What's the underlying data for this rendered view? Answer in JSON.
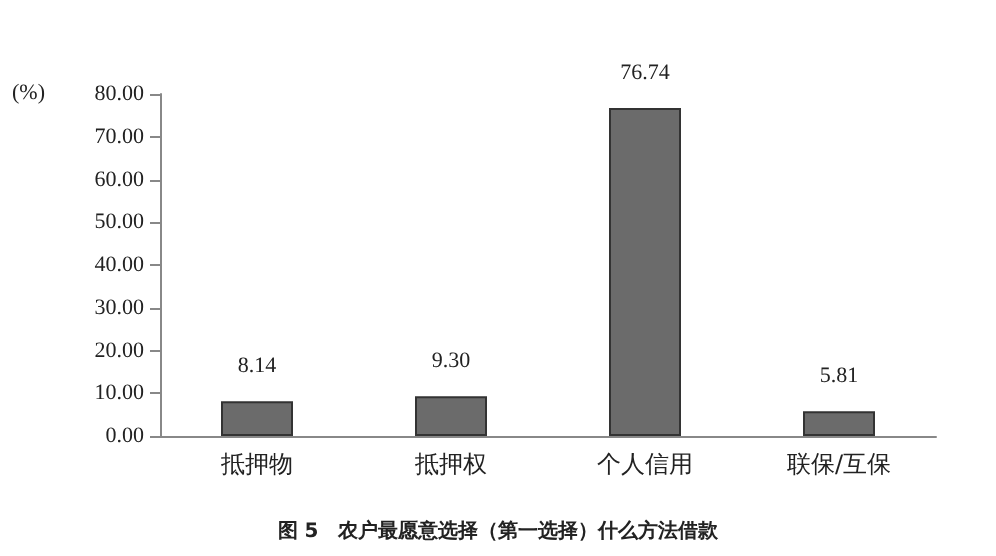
{
  "chart_data": {
    "type": "bar",
    "title": "图 5　农户最愿意选择（第一选择）什么方法借款",
    "ylabel": "(%)",
    "categories": [
      "抵押物",
      "抵押权",
      "个人信用",
      "联保/互保"
    ],
    "values": [
      8.14,
      9.3,
      76.74,
      5.81
    ],
    "value_labels": [
      "8.14",
      "9.30",
      "76.74",
      "5.81"
    ],
    "color": "#6b6b6b",
    "ylim": [
      0,
      80
    ],
    "yticks": [
      {
        "value": 0,
        "label": "0.00"
      },
      {
        "value": 10,
        "label": "10.00"
      },
      {
        "value": 20,
        "label": "20.00"
      },
      {
        "value": 30,
        "label": "30.00"
      },
      {
        "value": 40,
        "label": "40.00"
      },
      {
        "value": 50,
        "label": "50.00"
      },
      {
        "value": 60,
        "label": "60.00"
      },
      {
        "value": 70,
        "label": "70.00"
      },
      {
        "value": 80,
        "label": "80.00"
      }
    ],
    "grid": false
  }
}
